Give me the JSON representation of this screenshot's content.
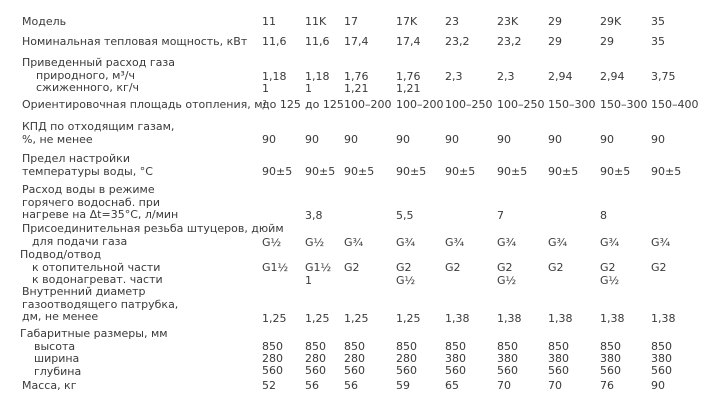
{
  "rows": [
    {
      "id": "model",
      "label": [
        "Модель"
      ],
      "values": [
        [
          "11"
        ],
        [
          "11K"
        ],
        [
          "17"
        ],
        [
          "17K"
        ],
        [
          "23"
        ],
        [
          "23K"
        ],
        [
          "29"
        ],
        [
          "29K"
        ],
        [
          "35"
        ]
      ]
    },
    {
      "id": "power",
      "label": [
        "Номинальная тепловая мощность, кВт"
      ],
      "values": [
        [
          "11,6"
        ],
        [
          "11,6"
        ],
        [
          "17,4"
        ],
        [
          "17,4"
        ],
        [
          "23,2"
        ],
        [
          "23,2"
        ],
        [
          "29"
        ],
        [
          "29"
        ],
        [
          "35"
        ]
      ]
    },
    {
      "id": "gas",
      "label": [
        "Приведенный расход газа",
        "природного, м³/ч",
        "сжиженного, кг/ч"
      ],
      "values": [
        [
          "1,18",
          "1"
        ],
        [
          "1,18",
          "1"
        ],
        [
          "1,76",
          "1,21"
        ],
        [
          "1,76",
          "1,21"
        ],
        [
          "2,3"
        ],
        [
          "2,3"
        ],
        [
          "2,94"
        ],
        [
          "2,94"
        ],
        [
          "3,75"
        ]
      ]
    },
    {
      "id": "area",
      "label": [
        "Ориентировочная площадь отопления, м²"
      ],
      "values": [
        [
          "до 125"
        ],
        [
          "до 125"
        ],
        [
          "100–200"
        ],
        [
          "100–200"
        ],
        [
          "100–250"
        ],
        [
          "100–250"
        ],
        [
          "150–300"
        ],
        [
          "150–300"
        ],
        [
          "150–400"
        ]
      ]
    },
    {
      "id": "eff",
      "label": [
        "КПД по отходящим газам,",
        "%, не менее"
      ],
      "values": [
        [
          "90"
        ],
        [
          "90"
        ],
        [
          "90"
        ],
        [
          "90"
        ],
        [
          "90"
        ],
        [
          "90"
        ],
        [
          "90"
        ],
        [
          "90"
        ],
        [
          "90"
        ]
      ]
    },
    {
      "id": "temp",
      "label": [
        "Предел настройки",
        "температуры воды, °С"
      ],
      "values": [
        [
          "90±5"
        ],
        [
          "90±5"
        ],
        [
          "90±5"
        ],
        [
          "90±5"
        ],
        [
          "90±5"
        ],
        [
          "90±5"
        ],
        [
          "90±5"
        ],
        [
          "90±5"
        ],
        [
          "90±5"
        ]
      ]
    },
    {
      "id": "flow",
      "label": [
        "Расход воды в режиме",
        "горячего водоснаб. при",
        "нагреве на Δt=35°С, л/мин"
      ],
      "values": [
        [
          ""
        ],
        [
          "3,8"
        ],
        [
          ""
        ],
        [
          "5,5"
        ],
        [
          ""
        ],
        [
          "7"
        ],
        [
          ""
        ],
        [
          "8"
        ],
        [
          ""
        ]
      ]
    },
    {
      "id": "thread",
      "label": [
        "Присоединительная резьба штуцеров, дюйм",
        "для подачи газа"
      ],
      "values": [
        [
          "G½"
        ],
        [
          "G½"
        ],
        [
          "G¾"
        ],
        [
          "G¾"
        ],
        [
          "G¾"
        ],
        [
          "G¾"
        ],
        [
          "G¾"
        ],
        [
          "G¾"
        ],
        [
          "G¾"
        ]
      ]
    },
    {
      "id": "supply",
      "label": [
        "Подвод/отвод",
        "к отопительной части",
        "к водонагреват. части"
      ],
      "values": [
        [
          "G1½"
        ],
        [
          "G1½",
          "1"
        ],
        [
          "G2"
        ],
        [
          "G2",
          "G½"
        ],
        [
          "G2"
        ],
        [
          "G2",
          "G½"
        ],
        [
          "G2"
        ],
        [
          "G2",
          "G½"
        ],
        [
          "G2"
        ]
      ]
    },
    {
      "id": "flue",
      "label": [
        "Внутренний диаметр",
        "газоотводящего патрубка,",
        "дм, не менее"
      ],
      "values": [
        [
          "1,25"
        ],
        [
          "1,25"
        ],
        [
          "1,25"
        ],
        [
          "1,25"
        ],
        [
          "1,38"
        ],
        [
          "1,38"
        ],
        [
          "1,38"
        ],
        [
          "1,38"
        ],
        [
          "1,38"
        ]
      ]
    },
    {
      "id": "dims",
      "label": [
        "Габаритные размеры, мм",
        "высота",
        "ширина",
        "глубина"
      ],
      "values": [
        [
          "850",
          "280",
          "560"
        ],
        [
          "850",
          "280",
          "560"
        ],
        [
          "850",
          "280",
          "560"
        ],
        [
          "850",
          "280",
          "560"
        ],
        [
          "850",
          "380",
          "560"
        ],
        [
          "850",
          "380",
          "560"
        ],
        [
          "850",
          "380",
          "560"
        ],
        [
          "850",
          "380",
          "560"
        ],
        [
          "850",
          "380",
          "560"
        ]
      ]
    },
    {
      "id": "mass",
      "label": [
        "Масса, кг"
      ],
      "values": [
        [
          "52"
        ],
        [
          "56"
        ],
        [
          "56"
        ],
        [
          "59"
        ],
        [
          "65"
        ],
        [
          "70"
        ],
        [
          "70"
        ],
        [
          "76"
        ],
        [
          "90"
        ]
      ]
    }
  ]
}
